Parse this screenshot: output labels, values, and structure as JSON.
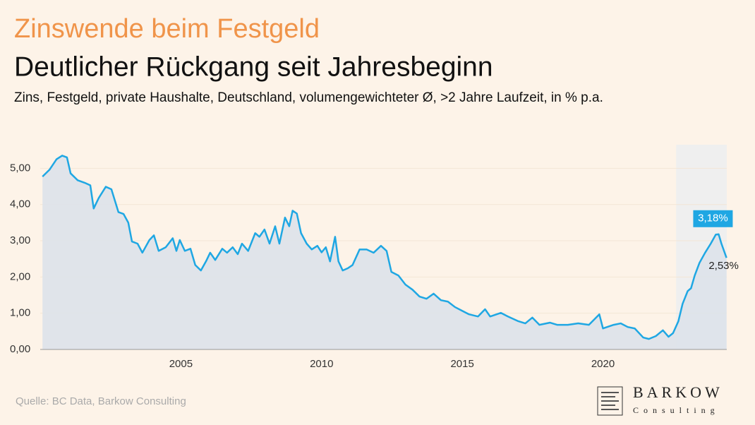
{
  "chart_data": {
    "type": "area",
    "title": "Zinswende beim Festgeld",
    "subtitle": "Deutlicher Rückgang seit Jahresbeginn",
    "description": "Zins, Festgeld, private Haushalte, Deutschland, volumengewichteter Ø, >2 Jahre Laufzeit, in % p.a.",
    "source": "Quelle: BC Data, Barkow Consulting",
    "x": [
      2000.08,
      2000.33,
      2000.58,
      2000.78,
      2000.95,
      2001.08,
      2001.33,
      2001.58,
      2001.78,
      2001.9,
      2002.08,
      2002.33,
      2002.53,
      2002.78,
      2002.96,
      2003.13,
      2003.26,
      2003.46,
      2003.63,
      2003.88,
      2004.04,
      2004.21,
      2004.46,
      2004.71,
      2004.84,
      2004.96,
      2005.14,
      2005.34,
      2005.51,
      2005.71,
      2005.89,
      2006.04,
      2006.22,
      2006.47,
      2006.64,
      2006.84,
      2007.02,
      2007.17,
      2007.39,
      2007.64,
      2007.79,
      2007.97,
      2008.15,
      2008.35,
      2008.5,
      2008.7,
      2008.85,
      2008.97,
      2009.12,
      2009.27,
      2009.47,
      2009.65,
      2009.85,
      2010.0,
      2010.15,
      2010.3,
      2010.48,
      2010.6,
      2010.75,
      2010.93,
      2011.1,
      2011.35,
      2011.6,
      2011.85,
      2012.11,
      2012.31,
      2012.48,
      2012.73,
      2012.98,
      2013.23,
      2013.48,
      2013.73,
      2013.98,
      2014.24,
      2014.49,
      2014.74,
      2014.99,
      2015.24,
      2015.56,
      2015.81,
      2015.99,
      2016.37,
      2016.62,
      2016.99,
      2017.24,
      2017.49,
      2017.74,
      2018.12,
      2018.37,
      2018.75,
      2019.12,
      2019.5,
      2019.87,
      2020.0,
      2020.38,
      2020.63,
      2020.88,
      2021.13,
      2021.43,
      2021.63,
      2021.88,
      2022.13,
      2022.33,
      2022.49,
      2022.68,
      2022.83,
      2023.01,
      2023.13,
      2023.26,
      2023.43,
      2023.63,
      2023.83,
      2024.01,
      2024.11,
      2024.21,
      2024.39
    ],
    "series": [
      {
        "color": "#1fa7e3",
        "fill": "#dde2ea",
        "values": [
          4.77,
          4.96,
          5.25,
          5.35,
          5.3,
          4.86,
          4.67,
          4.6,
          4.53,
          3.89,
          4.18,
          4.49,
          4.42,
          3.79,
          3.74,
          3.5,
          2.98,
          2.92,
          2.67,
          3.02,
          3.15,
          2.72,
          2.82,
          3.07,
          2.72,
          3.02,
          2.72,
          2.78,
          2.33,
          2.18,
          2.43,
          2.67,
          2.47,
          2.78,
          2.67,
          2.82,
          2.63,
          2.92,
          2.72,
          3.21,
          3.11,
          3.31,
          2.92,
          3.4,
          2.92,
          3.64,
          3.4,
          3.83,
          3.75,
          3.21,
          2.92,
          2.76,
          2.86,
          2.68,
          2.82,
          2.43,
          3.11,
          2.43,
          2.18,
          2.24,
          2.33,
          2.76,
          2.76,
          2.67,
          2.86,
          2.72,
          2.14,
          2.04,
          1.79,
          1.65,
          1.46,
          1.4,
          1.54,
          1.36,
          1.32,
          1.17,
          1.07,
          0.97,
          0.91,
          1.11,
          0.91,
          1.01,
          0.91,
          0.78,
          0.72,
          0.88,
          0.68,
          0.74,
          0.68,
          0.68,
          0.72,
          0.68,
          0.97,
          0.58,
          0.68,
          0.72,
          0.62,
          0.58,
          0.33,
          0.29,
          0.37,
          0.53,
          0.35,
          0.45,
          0.78,
          1.26,
          1.61,
          1.69,
          2.04,
          2.39,
          2.67,
          2.92,
          3.17,
          3.18,
          2.92,
          2.53
        ]
      }
    ],
    "xlim": [
      2000,
      2024.4
    ],
    "xticks": [
      2005,
      2010,
      2015,
      2020
    ],
    "ylim": [
      0,
      5.65
    ],
    "yticks": [
      {
        "value": 0,
        "label": "0,00"
      },
      {
        "value": 1,
        "label": "1,00"
      },
      {
        "value": 2,
        "label": "2,00"
      },
      {
        "value": 3,
        "label": "3,00"
      },
      {
        "value": 4,
        "label": "4,00"
      },
      {
        "value": 5,
        "label": "5,00"
      }
    ],
    "grid": true,
    "highlight_x": [
      2022.6,
      2024.4
    ],
    "annotations": [
      {
        "x": 2024.11,
        "value": 3.18,
        "label": "3,18%",
        "boxed": true
      },
      {
        "x": 2024.39,
        "value": 2.53,
        "label": "2,53%",
        "boxed": false
      }
    ]
  },
  "logo": {
    "name": "BARKOW",
    "tagline": "Consulting"
  }
}
